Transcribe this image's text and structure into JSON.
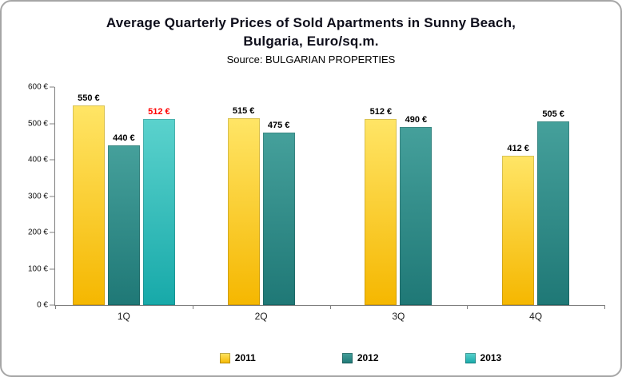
{
  "header": {
    "title_line1": "Average Quarterly Prices of Sold Apartments in Sunny Beach,",
    "title_line2": "Bulgaria, Euro/sq.m.",
    "subtitle": "Source: BULGARIAN PROPERTIES"
  },
  "chart_data": {
    "type": "bar",
    "title": "Average Quarterly Prices of Sold Apartments in Sunny Beach, Bulgaria, Euro/sq.m.",
    "subtitle": "Source: BULGARIAN PROPERTIES",
    "categories": [
      "1Q",
      "2Q",
      "3Q",
      "4Q"
    ],
    "series": [
      {
        "name": "2011",
        "color": "#F5B700",
        "color_light": "#FFE566",
        "label_color": "#000000",
        "values": [
          550,
          515,
          512,
          412
        ]
      },
      {
        "name": "2012",
        "color": "#1F7876",
        "color_light": "#45A09B",
        "label_color": "#000000",
        "values": [
          440,
          475,
          490,
          505
        ]
      },
      {
        "name": "2013",
        "color": "#17A9A9",
        "color_light": "#5BD2CD",
        "label_color": "#FF0000",
        "values": [
          512,
          null,
          null,
          null
        ]
      }
    ],
    "unit": "€",
    "xlabel": "",
    "ylabel": "",
    "ylim": [
      0,
      600
    ],
    "y_ticks": [
      0,
      100,
      200,
      300,
      400,
      500,
      600
    ],
    "y_tick_suffix": " €",
    "grid": false,
    "legend_position": "bottom"
  }
}
